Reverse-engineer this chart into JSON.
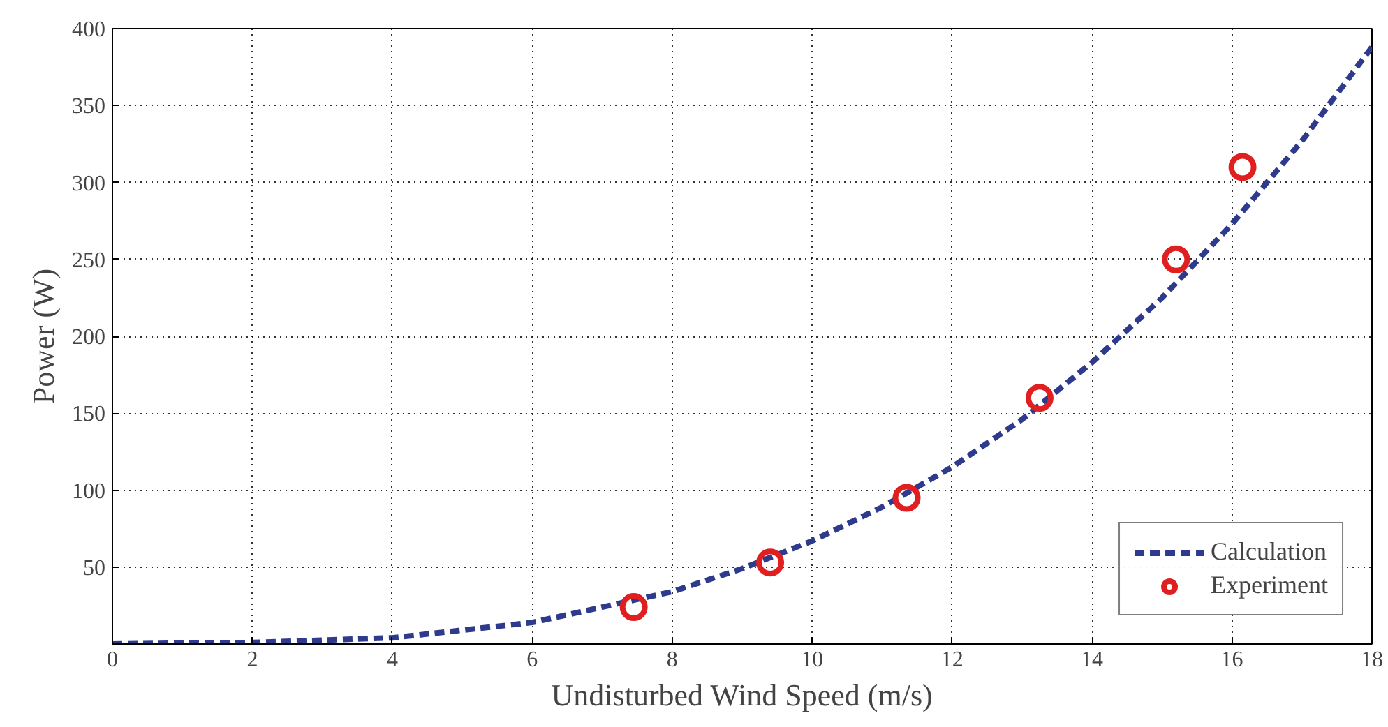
{
  "chart_data": {
    "type": "line",
    "xlabel": "Undisturbed Wind Speed (m/s)",
    "ylabel": "Power (W)",
    "xlim": [
      0,
      18
    ],
    "ylim": [
      0,
      400
    ],
    "xticks": [
      0,
      2,
      4,
      6,
      8,
      10,
      12,
      14,
      16,
      18
    ],
    "yticks": [
      {
        "value": 0,
        "label": null
      },
      50,
      100,
      150,
      200,
      250,
      300,
      350,
      400
    ],
    "grid": true,
    "legend": "bottom right",
    "series": [
      {
        "name": "Calculation",
        "line_style": "dashed",
        "marker": "none",
        "color": "#2e3a8c",
        "x": [
          0,
          2,
          4,
          6,
          8,
          9,
          10,
          11,
          12,
          13,
          14,
          15,
          16,
          17,
          18
        ],
        "values": [
          0,
          1,
          4,
          14,
          34,
          49,
          67,
          89,
          115,
          146,
          183,
          225,
          273,
          327,
          388
        ]
      },
      {
        "name": "Experiment",
        "type": "scatter",
        "marker": "circle",
        "color": "#e02020",
        "x": [
          7.45,
          9.4,
          11.35,
          13.25,
          15.2,
          16.15
        ],
        "values": [
          24,
          53,
          95,
          160,
          250,
          310
        ]
      }
    ]
  }
}
